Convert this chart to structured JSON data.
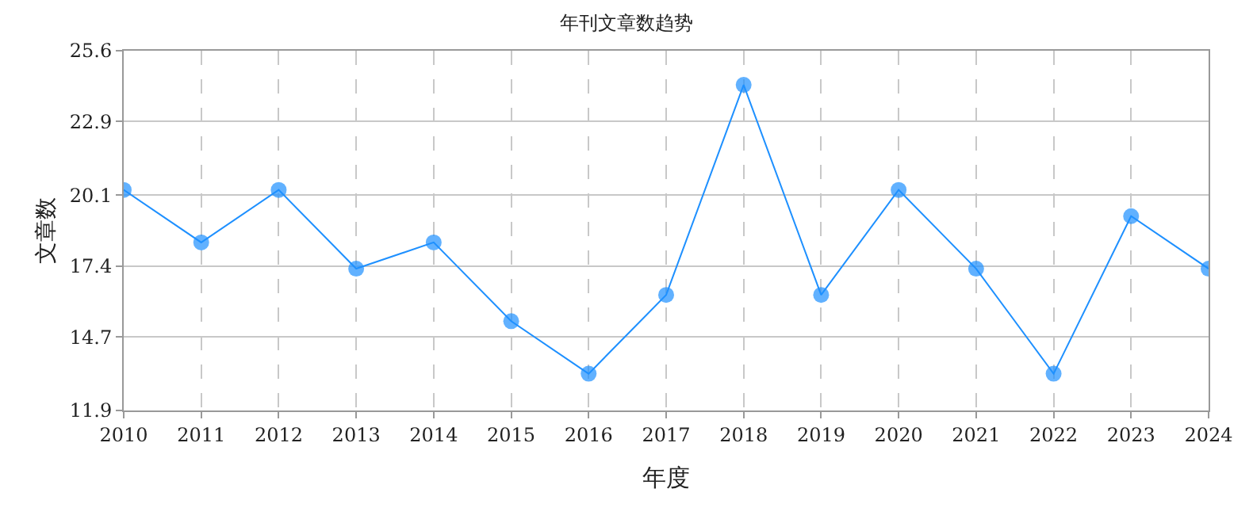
{
  "chart_data": {
    "type": "line",
    "title": "年刊文章数趋势",
    "xlabel": "年度",
    "ylabel": "文章数",
    "categories": [
      "2010",
      "2011",
      "2012",
      "2013",
      "2014",
      "2015",
      "2016",
      "2017",
      "2018",
      "2019",
      "2020",
      "2021",
      "2022",
      "2023",
      "2024"
    ],
    "series": [
      {
        "color": "#1e90ff",
        "values": [
          20.3,
          18.3,
          20.3,
          17.3,
          18.3,
          15.3,
          13.3,
          16.3,
          24.3,
          16.3,
          20.3,
          17.3,
          13.3,
          19.3,
          17.3
        ]
      }
    ],
    "ylim": [
      11.9,
      25.6
    ],
    "yticks": [
      11.9,
      14.7,
      17.4,
      20.1,
      22.9,
      25.6
    ],
    "grid": true,
    "marker": "circle",
    "line_style": "solid"
  }
}
